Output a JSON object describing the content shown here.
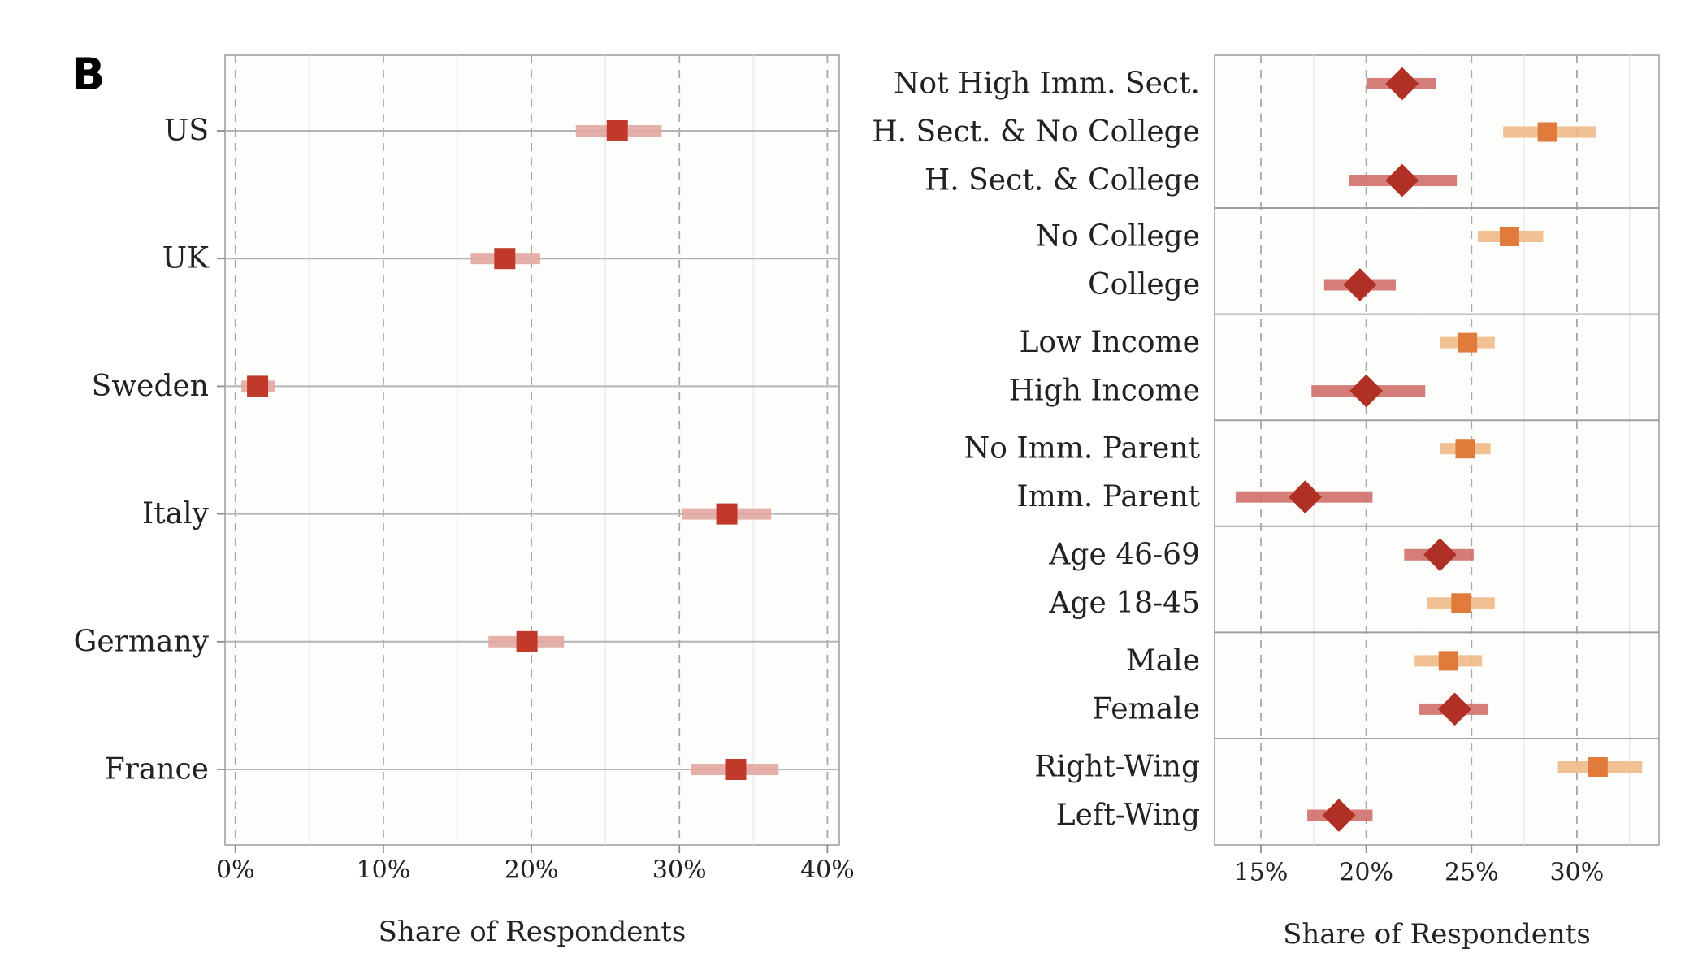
{
  "panel_label": "B",
  "colors": {
    "country_bar": "#e3a7a1",
    "country_point": "#c0392b",
    "diamond_bar": "#cf6f6a",
    "diamond_point": "#b03025",
    "square_bar": "#f0b987",
    "square_point": "#e07b3c"
  },
  "chart_data": [
    {
      "type": "scatter",
      "title": "",
      "xlabel": "Share of Respondents",
      "ylabel": "",
      "xlim": [
        -0.7,
        40.8
      ],
      "x_ticks": [
        0,
        10,
        20,
        30,
        40
      ],
      "x_tick_labels": [
        "0%",
        "10%",
        "20%",
        "30%",
        "40%"
      ],
      "grid": true,
      "series": [
        {
          "marker": "square",
          "points": [
            {
              "label": "US",
              "value": 25.8,
              "ci": [
                23.0,
                28.8
              ]
            },
            {
              "label": "UK",
              "value": 18.2,
              "ci": [
                15.9,
                20.6
              ]
            },
            {
              "label": "Sweden",
              "value": 1.5,
              "ci": [
                0.4,
                2.7
              ]
            },
            {
              "label": "Italy",
              "value": 33.2,
              "ci": [
                30.2,
                36.2
              ]
            },
            {
              "label": "Germany",
              "value": 19.7,
              "ci": [
                17.1,
                22.2
              ]
            },
            {
              "label": "France",
              "value": 33.8,
              "ci": [
                30.8,
                36.7
              ]
            }
          ]
        }
      ]
    },
    {
      "type": "scatter",
      "title": "",
      "xlabel": "Share of Respondents",
      "ylabel": "",
      "xlim": [
        12.8,
        33.9
      ],
      "x_ticks": [
        15,
        20,
        25,
        30
      ],
      "x_tick_labels": [
        "15%",
        "20%",
        "25%",
        "30%"
      ],
      "grid": true,
      "groups": [
        [
          {
            "label": "Not High Imm. Sect.",
            "marker": "diamond",
            "value": 21.7,
            "ci": [
              20.0,
              23.3
            ]
          },
          {
            "label": "H. Sect. & No College",
            "marker": "square",
            "value": 28.6,
            "ci": [
              26.5,
              30.9
            ]
          },
          {
            "label": "H. Sect. & College",
            "marker": "diamond",
            "value": 21.7,
            "ci": [
              19.2,
              24.3
            ]
          }
        ],
        [
          {
            "label": "No College",
            "marker": "square",
            "value": 26.8,
            "ci": [
              25.3,
              28.4
            ]
          },
          {
            "label": "College",
            "marker": "diamond",
            "value": 19.7,
            "ci": [
              18.0,
              21.4
            ]
          }
        ],
        [
          {
            "label": "Low Income",
            "marker": "square",
            "value": 24.8,
            "ci": [
              23.5,
              26.1
            ]
          },
          {
            "label": "High Income",
            "marker": "diamond",
            "value": 20.0,
            "ci": [
              17.4,
              22.8
            ]
          }
        ],
        [
          {
            "label": "No Imm. Parent",
            "marker": "square",
            "value": 24.7,
            "ci": [
              23.5,
              25.9
            ]
          },
          {
            "label": "Imm. Parent",
            "marker": "diamond",
            "value": 17.1,
            "ci": [
              13.8,
              20.3
            ]
          }
        ],
        [
          {
            "label": "Age 46-69",
            "marker": "diamond",
            "value": 23.5,
            "ci": [
              21.8,
              25.1
            ]
          },
          {
            "label": "Age 18-45",
            "marker": "square",
            "value": 24.5,
            "ci": [
              22.9,
              26.1
            ]
          }
        ],
        [
          {
            "label": "Male",
            "marker": "square",
            "value": 23.9,
            "ci": [
              22.3,
              25.5
            ]
          },
          {
            "label": "Female",
            "marker": "diamond",
            "value": 24.2,
            "ci": [
              22.5,
              25.8
            ]
          }
        ],
        [
          {
            "label": "Right-Wing",
            "marker": "square",
            "value": 31.0,
            "ci": [
              29.1,
              33.1
            ]
          },
          {
            "label": "Left-Wing",
            "marker": "diamond",
            "value": 18.7,
            "ci": [
              17.2,
              20.3
            ]
          }
        ]
      ]
    }
  ]
}
